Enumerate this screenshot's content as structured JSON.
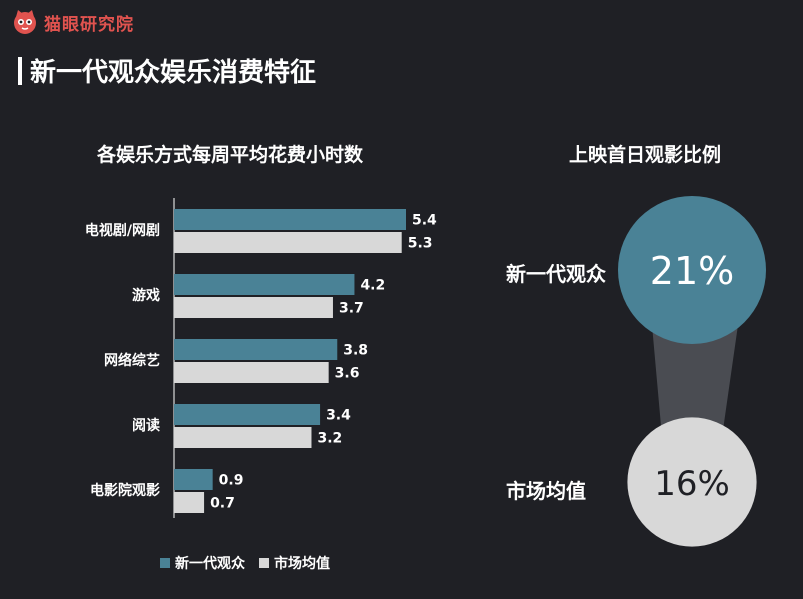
{
  "brand": {
    "name": "猫眼研究院",
    "logo_icon": "cat-face-icon",
    "color": "#e0534f"
  },
  "page_title": "新一代观众娱乐消费特征",
  "colors": {
    "series_new": "#4a8296",
    "series_market": "#d8d8d8",
    "background": "#1f2025",
    "funnel": "#4a4c52"
  },
  "chart_data": [
    {
      "type": "bar",
      "orientation": "horizontal",
      "title": "各娱乐方式每周平均花费小时数",
      "categories": [
        "电视剧/网剧",
        "游戏",
        "网络综艺",
        "阅读",
        "电影院观影"
      ],
      "series": [
        {
          "name": "新一代观众",
          "values": [
            5.4,
            4.2,
            3.8,
            3.4,
            0.9
          ]
        },
        {
          "name": "市场均值",
          "values": [
            5.3,
            3.7,
            3.6,
            3.2,
            0.7
          ]
        }
      ],
      "xlim": [
        0,
        6
      ],
      "legend": "bottom"
    },
    {
      "type": "bubble-comparison",
      "title": "上映首日观影比例",
      "categories": [
        "新一代观众",
        "市场均值"
      ],
      "values": [
        21,
        16
      ],
      "value_labels": [
        "21%",
        "16%"
      ]
    }
  ]
}
